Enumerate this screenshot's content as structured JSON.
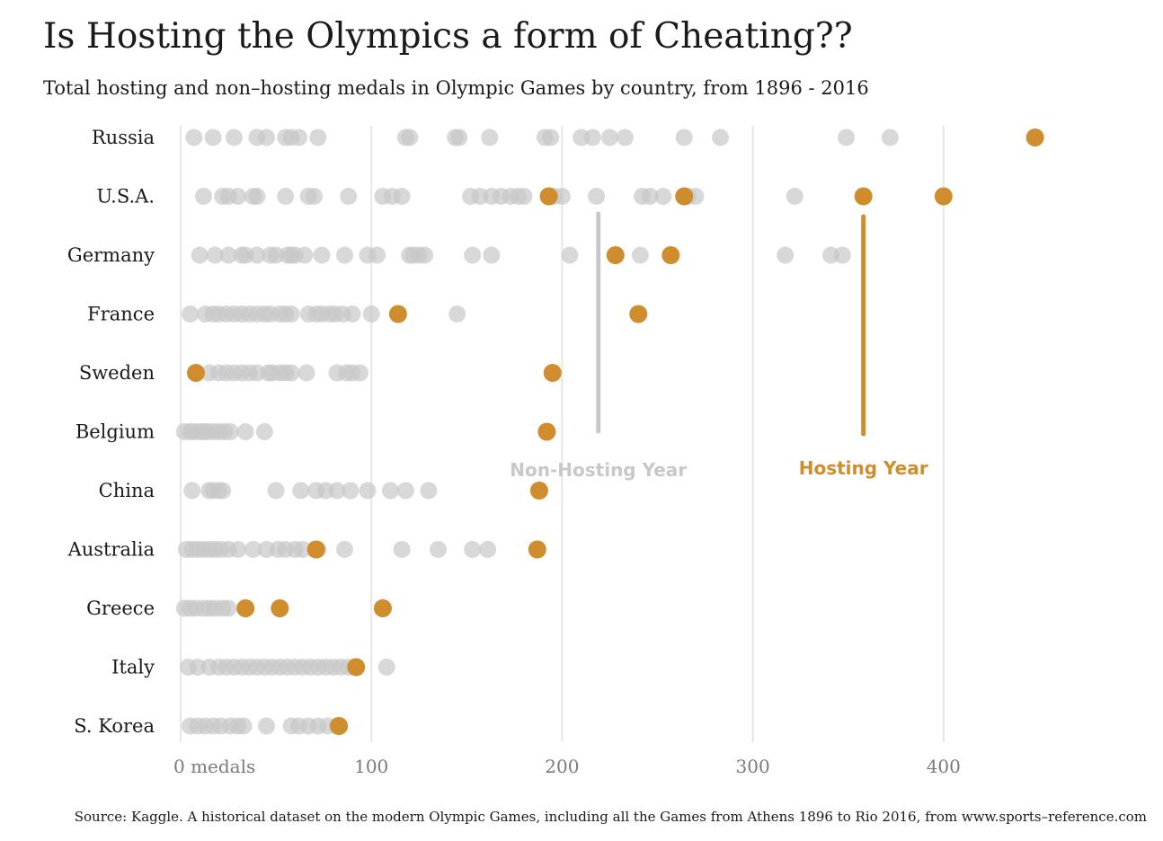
{
  "title": "Is Hosting the Olympics a form of Cheating??",
  "subtitle": "Total hosting and non–hosting medals in Olympic Games by country, from 1896 - 2016",
  "source": "Source: Kaggle. A historical dataset on the modern Olympic Games, including all the Games from Athens 1896 to Rio 2016, from www.sports–reference.com",
  "colors": {
    "non_hosting": "#c8c8c8",
    "hosting": "#cf8d2e",
    "grid": "#e6e6e6",
    "text": "#1a1a1a",
    "tick": "#7a7a7a"
  },
  "chart_data": {
    "type": "scatter",
    "x_tick_labels": [
      "0 medals",
      "100",
      "200",
      "300",
      "400"
    ],
    "x_ticks": [
      0,
      100,
      200,
      300,
      400
    ],
    "xlim": [
      0,
      460
    ],
    "grid": "vertical",
    "annotations": [
      {
        "text": "Non-Hosting Year",
        "series": "non_hosting",
        "x": 219
      },
      {
        "text": "Hosting Year",
        "series": "hosting",
        "x": 358
      }
    ],
    "countries": [
      {
        "name": "Russia",
        "non_hosting": [
          7,
          17,
          28,
          40,
          45,
          55,
          58,
          62,
          72,
          118,
          120,
          144,
          146,
          162,
          191,
          194,
          210,
          216,
          225,
          233,
          264,
          283,
          349,
          372
        ],
        "hosting": [
          448
        ]
      },
      {
        "name": "U.S.A.",
        "non_hosting": [
          12,
          22,
          25,
          30,
          38,
          40,
          55,
          67,
          70,
          88,
          106,
          111,
          116,
          152,
          157,
          163,
          168,
          173,
          177,
          180,
          196,
          200,
          218,
          242,
          246,
          253,
          266,
          270,
          322
        ],
        "hosting": [
          193,
          264,
          358,
          400
        ]
      },
      {
        "name": "Germany",
        "non_hosting": [
          10,
          18,
          25,
          32,
          34,
          40,
          47,
          50,
          56,
          58,
          60,
          65,
          74,
          86,
          98,
          103,
          120,
          122,
          125,
          128,
          153,
          163,
          204,
          241,
          317,
          341,
          347
        ],
        "hosting": [
          228,
          257
        ]
      },
      {
        "name": "France",
        "non_hosting": [
          5,
          13,
          17,
          20,
          24,
          28,
          32,
          36,
          40,
          44,
          47,
          52,
          55,
          58,
          67,
          71,
          74,
          78,
          81,
          85,
          90,
          100,
          145
        ],
        "hosting": [
          114,
          240
        ]
      },
      {
        "name": "Sweden",
        "non_hosting": [
          8,
          15,
          20,
          24,
          28,
          32,
          36,
          40,
          46,
          48,
          52,
          55,
          58,
          66,
          82,
          87,
          90,
          94
        ],
        "hosting": [
          8,
          195
        ]
      },
      {
        "name": "Belgium",
        "non_hosting": [
          2,
          5,
          7,
          10,
          12,
          14,
          17,
          20,
          23,
          26,
          34,
          44
        ],
        "hosting": [
          192
        ]
      },
      {
        "name": "China",
        "non_hosting": [
          6,
          15,
          17,
          20,
          22,
          50,
          63,
          71,
          76,
          82,
          89,
          98,
          110,
          118,
          130
        ],
        "hosting": [
          188
        ]
      },
      {
        "name": "Australia",
        "non_hosting": [
          3,
          6,
          9,
          12,
          15,
          18,
          21,
          25,
          30,
          38,
          45,
          51,
          55,
          60,
          64,
          72,
          86,
          116,
          135,
          153,
          161
        ],
        "hosting": [
          71,
          187
        ]
      },
      {
        "name": "Greece",
        "non_hosting": [
          2,
          5,
          8,
          12,
          15,
          18,
          22,
          25
        ],
        "hosting": [
          34,
          52,
          106
        ]
      },
      {
        "name": "Italy",
        "non_hosting": [
          4,
          9,
          15,
          20,
          24,
          28,
          32,
          36,
          40,
          44,
          48,
          52,
          56,
          60,
          64,
          68,
          72,
          76,
          80,
          84,
          88,
          108
        ],
        "hosting": [
          92
        ]
      },
      {
        "name": "S. Korea",
        "non_hosting": [
          5,
          9,
          13,
          17,
          21,
          26,
          30,
          33,
          45,
          58,
          62,
          67,
          72,
          77,
          82
        ],
        "hosting": [
          83
        ]
      }
    ]
  }
}
